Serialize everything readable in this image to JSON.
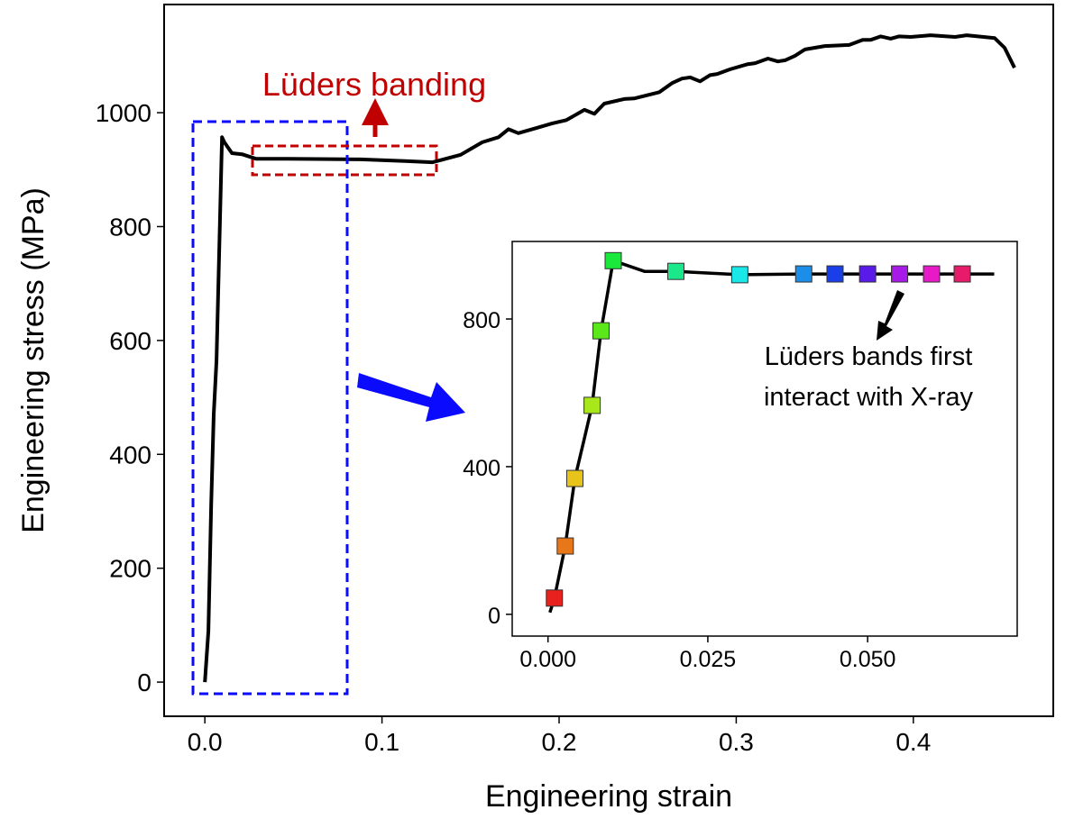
{
  "chart_data": [
    {
      "type": "line",
      "xlabel": "Engineering strain",
      "ylabel": "Engineering stress (MPa)",
      "xlim": [
        -0.023,
        0.479
      ],
      "ylim": [
        -60,
        1190
      ],
      "xticks": [
        "0.0",
        "0.1",
        "0.2",
        "0.3",
        "0.4"
      ],
      "xtick_values": [
        0,
        0.1,
        0.2,
        0.3,
        0.4
      ],
      "yticks": [
        "0",
        "200",
        "400",
        "600",
        "800",
        "1000"
      ],
      "ytick_values": [
        0,
        200,
        400,
        600,
        800,
        1000
      ],
      "grid": false,
      "line_color": "#000000",
      "x": [
        0,
        0.002,
        0.0036,
        0.005,
        0.0066,
        0.0097,
        0.011,
        0.0153,
        0.021,
        0.029,
        0.047,
        0.088,
        0.113,
        0.1286,
        0.1444,
        0.1566,
        0.1658,
        0.1714,
        0.177,
        0.1872,
        0.1959,
        0.2041,
        0.2143,
        0.2199,
        0.2255,
        0.2367,
        0.2423,
        0.2566,
        0.2638,
        0.2694,
        0.274,
        0.2796,
        0.2852,
        0.2893,
        0.2964,
        0.3061,
        0.3107,
        0.3179,
        0.3235,
        0.3276,
        0.3332,
        0.3388,
        0.35,
        0.3638,
        0.3714,
        0.376,
        0.3816,
        0.3872,
        0.3918,
        0.3985,
        0.4097,
        0.4235,
        0.4301,
        0.4459,
        0.4515,
        0.4571
      ],
      "y": [
        0,
        90,
        312,
        470,
        565,
        957,
        948,
        929,
        927,
        919,
        919,
        918,
        915,
        913,
        926,
        948,
        957,
        971,
        964,
        973,
        981,
        987,
        1005,
        998,
        1016,
        1024,
        1025,
        1036,
        1052,
        1060,
        1062,
        1055,
        1066,
        1068,
        1076,
        1085,
        1087,
        1095,
        1090,
        1092,
        1100,
        1111,
        1117,
        1119,
        1128,
        1128,
        1134,
        1130,
        1134,
        1133,
        1136,
        1133,
        1136,
        1131,
        1114,
        1079
      ],
      "annotations": [
        {
          "text": "Lüders banding",
          "color": "#c00000",
          "style": "red dashed box with upward arrow"
        },
        {
          "style": "blue dashed box around elastic region, blue arrow pointing to inset",
          "color": "#0a0aff"
        }
      ]
    },
    {
      "type": "line",
      "role": "inset",
      "xlim": [
        -0.0056,
        0.0734
      ],
      "ylim": [
        -59,
        1010
      ],
      "xticks": [
        "0.000",
        "0.025",
        "0.050"
      ],
      "xtick_values": [
        0,
        0.025,
        0.05
      ],
      "yticks": [
        "0",
        "400",
        "800"
      ],
      "ytick_values": [
        0,
        400,
        800
      ],
      "grid": false,
      "x": [
        0.0003,
        0.001,
        0.0027,
        0.0042,
        0.0056,
        0.0069,
        0.0083,
        0.0102,
        0.0151,
        0.02,
        0.03,
        0.04,
        0.0449,
        0.05,
        0.055,
        0.06,
        0.0648,
        0.0698
      ],
      "y": [
        5,
        44,
        185,
        368,
        470,
        566,
        768,
        958,
        929,
        929,
        920,
        922,
        922,
        922,
        922,
        922,
        922,
        922
      ],
      "markers": {
        "x": [
          0.001,
          0.0027,
          0.0042,
          0.0069,
          0.0083,
          0.0102,
          0.02,
          0.03,
          0.04,
          0.0449,
          0.05,
          0.055,
          0.06,
          0.0648
        ],
        "y": [
          44,
          185,
          368,
          566,
          768,
          958,
          929,
          920,
          922,
          922,
          922,
          922,
          922,
          922
        ],
        "colors": [
          "#e8201e",
          "#e8771a",
          "#e8c41a",
          "#a8e81a",
          "#5ae81a",
          "#1ae83a",
          "#1ae88a",
          "#1ae8e8",
          "#1a8ee8",
          "#1a3ee8",
          "#5a1ae8",
          "#a81ae8",
          "#e81ac8",
          "#e81a6a"
        ],
        "shape": "square"
      },
      "annotation": {
        "lines": [
          "Lüders bands first",
          "interact with X-ray"
        ],
        "arrow": "black arrow pointing to marker"
      }
    }
  ]
}
